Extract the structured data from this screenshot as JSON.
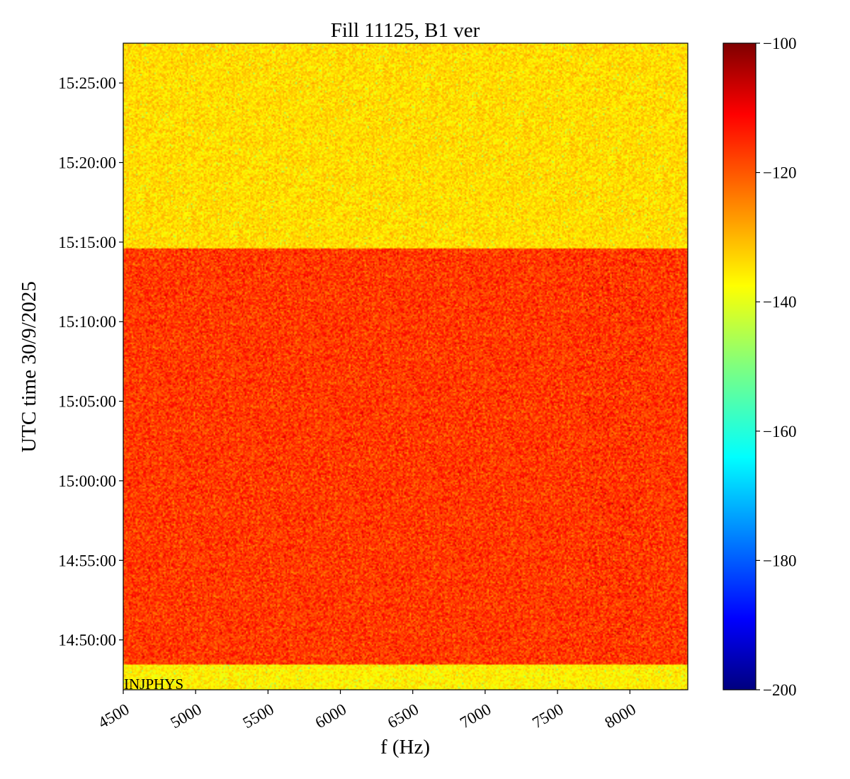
{
  "chart_data": {
    "type": "heatmap",
    "title": "Fill 11125, B1 ver",
    "xlabel": "f (Hz)",
    "ylabel": "UTC time 30/9/2025",
    "xlim": [
      4500,
      8400
    ],
    "x_ticks": [
      4500,
      5000,
      5500,
      6000,
      6500,
      7000,
      7500,
      8000
    ],
    "x_tick_labels": [
      "4500",
      "5000",
      "5500",
      "6000",
      "6500",
      "7000",
      "7500",
      "8000"
    ],
    "ylim": [
      "14:46:52",
      "15:27:30"
    ],
    "y_ticks": [
      "14:50:00",
      "14:55:00",
      "15:00:00",
      "15:05:00",
      "15:10:00",
      "15:15:00",
      "15:20:00",
      "15:25:00"
    ],
    "y_tick_labels": [
      "14:50:00",
      "14:55:00",
      "15:00:00",
      "15:05:00",
      "15:10:00",
      "15:15:00",
      "15:20:00",
      "15:25:00"
    ],
    "colormap": "jet",
    "colorbar": {
      "range": [
        -200,
        -100
      ],
      "ticks": [
        -200,
        -180,
        -160,
        -140,
        -120,
        -100
      ],
      "tick_labels": [
        "−200",
        "−180",
        "−160",
        "−140",
        "−120",
        "−100"
      ]
    },
    "regions": [
      {
        "t_start": "14:46:52",
        "t_end": "14:48:25",
        "level": -136
      },
      {
        "t_start": "14:48:25",
        "t_end": "15:14:35",
        "level": -118
      },
      {
        "t_start": "15:14:35",
        "t_end": "15:27:30",
        "level": -134
      }
    ],
    "annotations": [
      {
        "text": "INJPHYS",
        "t": "14:47:05",
        "f": 4500
      }
    ]
  }
}
